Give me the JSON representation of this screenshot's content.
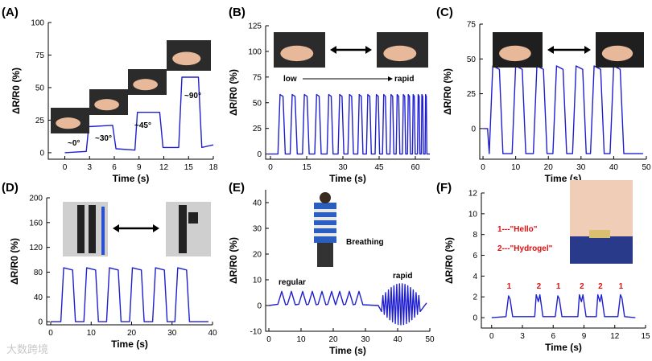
{
  "watermark": "大数跨境",
  "colors": {
    "trace": "#1f1fd0",
    "annotation_red": "#e01010",
    "arrow": "#000000"
  },
  "chart_data": [
    {
      "id": "A",
      "type": "line",
      "panel_label": "(A)",
      "xlabel": "Time (s)",
      "ylabel": "ΔR/R0 (%)",
      "xlim": [
        -2,
        18
      ],
      "ylim": [
        -5,
        100
      ],
      "xticks": [
        0,
        3,
        6,
        9,
        12,
        15,
        18
      ],
      "yticks": [
        0,
        25,
        50,
        75,
        100
      ],
      "annotations": [
        "~0°",
        "~30°",
        "~45°",
        "~90°"
      ],
      "images": [
        "finger straight photo",
        "finger bent 30 photo",
        "finger bent 45 photo",
        "finger bent 90 photo"
      ],
      "series": [
        {
          "name": "finger bending angles",
          "x": [
            0,
            2.6,
            2.9,
            5.8,
            6.2,
            8.5,
            8.8,
            11.5,
            11.9,
            13.8,
            14.2,
            16.2,
            16.6,
            18
          ],
          "y": [
            0,
            1,
            20,
            21,
            3,
            2,
            31,
            31,
            4,
            4,
            58,
            58,
            4,
            6
          ]
        }
      ]
    },
    {
      "id": "B",
      "type": "line",
      "panel_label": "(B)",
      "xlabel": "Time (s)",
      "ylabel": "ΔR/R0 (%)",
      "xlim": [
        -2,
        66
      ],
      "ylim": [
        -5,
        125
      ],
      "xticks": [
        0,
        15,
        30,
        45,
        60
      ],
      "yticks": [
        0,
        25,
        50,
        75,
        100,
        125
      ],
      "annotations": [
        "low",
        "rapid"
      ],
      "images": [
        "finger straight photo",
        "finger bent photo"
      ],
      "series": [
        {
          "name": "finger bending low to rapid",
          "peak_times": [
            5,
            10,
            15,
            20,
            25,
            29.5,
            33.5,
            37.5,
            41,
            44.5,
            47.5,
            50.5,
            53,
            55.5,
            57.5,
            59.5,
            61.5,
            63,
            64.5
          ],
          "peak_value": 58,
          "baseline": 0
        }
      ]
    },
    {
      "id": "C",
      "type": "line",
      "panel_label": "(C)",
      "xlabel": "Time (s)",
      "ylabel": "ΔR/R0 (%)",
      "xlim": [
        -1,
        50
      ],
      "ylim": [
        -22,
        75
      ],
      "xticks": [
        0,
        10,
        20,
        30,
        40,
        50
      ],
      "yticks": [
        0,
        25,
        50,
        75
      ],
      "images": [
        "wrist straight photo",
        "wrist bent photo"
      ],
      "series": [
        {
          "name": "wrist bending",
          "peak_times": [
            4,
            11,
            17.5,
            23.5,
            29.5,
            35,
            41
          ],
          "peak_value": 45,
          "baseline": -18,
          "start": 0
        }
      ]
    },
    {
      "id": "D",
      "type": "line",
      "panel_label": "(D)",
      "xlabel": "Time (s)",
      "ylabel": "ΔR/R0 (%)",
      "xlim": [
        -1,
        40
      ],
      "ylim": [
        -5,
        200
      ],
      "xticks": [
        0,
        10,
        20,
        30,
        40
      ],
      "yticks": [
        0,
        40,
        80,
        120,
        160,
        200
      ],
      "images": [
        "knee straight photo",
        "knee bent photo"
      ],
      "series": [
        {
          "name": "knee bending",
          "peak_times": [
            4.3,
            10,
            15.6,
            21.3,
            27,
            32.5
          ],
          "peak_value": 87,
          "baseline": 0
        }
      ]
    },
    {
      "id": "E",
      "type": "line",
      "panel_label": "(E)",
      "xlabel": "Time (s)",
      "ylabel": "ΔR/R0 (%)",
      "xlim": [
        -1,
        50
      ],
      "ylim": [
        -10,
        45
      ],
      "xticks": [
        0,
        10,
        20,
        30,
        40,
        50
      ],
      "yticks": [
        -10,
        0,
        10,
        20,
        30,
        40
      ],
      "annotations": [
        "Breathing",
        "regular",
        "rapid"
      ],
      "images": [
        "person breathing photo"
      ],
      "series": [
        {
          "name": "breathing",
          "regular_peaks": [
            4,
            7,
            10.5,
            13.5,
            16.5,
            19.5,
            22,
            25,
            28
          ],
          "regular_amp": 5.5,
          "rapid_range": [
            35,
            47
          ],
          "rapid_cycles": 14,
          "rapid_amp": 8
        }
      ]
    },
    {
      "id": "F",
      "type": "line",
      "panel_label": "(F)",
      "xlabel": "Time (s)",
      "ylabel": "ΔR/R0 (%)",
      "xlim": [
        -1,
        15
      ],
      "ylim": [
        -1,
        12
      ],
      "xticks": [
        0,
        3,
        6,
        9,
        12,
        15
      ],
      "yticks": [
        0,
        2,
        4,
        6,
        8,
        10,
        12
      ],
      "annotations": [
        "1---\"Hello\"",
        "2---\"Hydrogel\""
      ],
      "markers": [
        {
          "label": "1",
          "x": 1.7
        },
        {
          "label": "2",
          "x": 4.6
        },
        {
          "label": "1",
          "x": 6.5
        },
        {
          "label": "2",
          "x": 8.8
        },
        {
          "label": "2",
          "x": 10.6
        },
        {
          "label": "1",
          "x": 12.6
        }
      ],
      "images": [
        "throat with sensor photo"
      ],
      "series": [
        {
          "name": "speech",
          "events": [
            {
              "x": 1.7,
              "h": 2.1,
              "type": "1"
            },
            {
              "x": 4.6,
              "h": 2.2,
              "type": "2"
            },
            {
              "x": 6.5,
              "h": 2.1,
              "type": "1"
            },
            {
              "x": 8.8,
              "h": 2.2,
              "type": "2"
            },
            {
              "x": 10.6,
              "h": 2.2,
              "type": "2"
            },
            {
              "x": 12.6,
              "h": 2.2,
              "type": "1"
            }
          ]
        }
      ]
    }
  ]
}
